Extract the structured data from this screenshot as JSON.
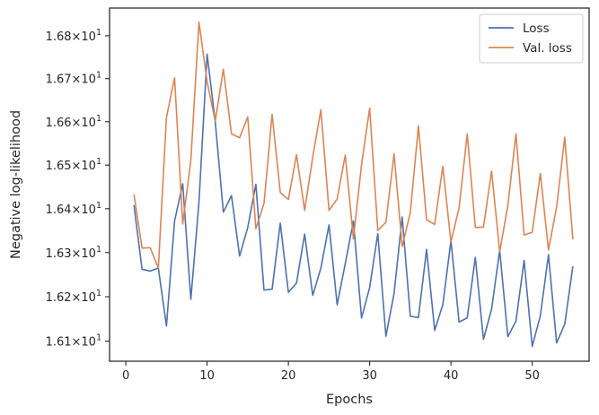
{
  "chart_data": {
    "type": "line",
    "title": "",
    "xlabel": "Epochs",
    "ylabel": "Negative log-likelihood",
    "xlim": [
      -2,
      57
    ],
    "ylim": [
      16.055,
      16.865
    ],
    "yscale": "log",
    "grid": false,
    "legend_position": "top-right",
    "x_ticks": [
      0,
      10,
      20,
      30,
      40,
      50
    ],
    "x_tick_labels": [
      "0",
      "10",
      "20",
      "30",
      "40",
      "50"
    ],
    "y_ticks": [
      16.1,
      16.2,
      16.3,
      16.4,
      16.5,
      16.6,
      16.7,
      16.8
    ],
    "y_tick_labels": [
      {
        "base": "1.61",
        "exp": "1"
      },
      {
        "base": "1.62",
        "exp": "1"
      },
      {
        "base": "1.63",
        "exp": "1"
      },
      {
        "base": "1.64",
        "exp": "1"
      },
      {
        "base": "1.65",
        "exp": "1"
      },
      {
        "base": "1.66",
        "exp": "1"
      },
      {
        "base": "1.67",
        "exp": "1"
      },
      {
        "base": "1.68",
        "exp": "1"
      }
    ],
    "x": [
      1,
      2,
      3,
      4,
      5,
      6,
      7,
      8,
      9,
      10,
      11,
      12,
      13,
      14,
      15,
      16,
      17,
      18,
      19,
      20,
      21,
      22,
      23,
      24,
      25,
      26,
      27,
      28,
      29,
      30,
      31,
      32,
      33,
      34,
      35,
      36,
      37,
      38,
      39,
      40,
      41,
      42,
      43,
      44,
      45,
      46,
      47,
      48,
      49,
      50,
      51,
      52,
      53,
      54,
      55
    ],
    "series": [
      {
        "name": "Loss",
        "color": "#4c72b0",
        "values": [
          16.408,
          16.262,
          16.258,
          16.265,
          16.134,
          16.372,
          16.457,
          16.194,
          16.415,
          16.757,
          16.6,
          16.392,
          16.43,
          16.292,
          16.357,
          16.456,
          16.215,
          16.217,
          16.367,
          16.21,
          16.231,
          16.342,
          16.203,
          16.265,
          16.363,
          16.182,
          16.275,
          16.372,
          16.152,
          16.221,
          16.343,
          16.111,
          16.207,
          16.381,
          16.156,
          16.153,
          16.307,
          16.124,
          16.182,
          16.327,
          16.143,
          16.152,
          16.289,
          16.104,
          16.172,
          16.305,
          16.11,
          16.145,
          16.282,
          16.088,
          16.157,
          16.295,
          16.096,
          16.138,
          16.269
        ]
      },
      {
        "name": "Val. loss",
        "color": "#dd8452",
        "values": [
          16.433,
          16.31,
          16.311,
          16.265,
          16.61,
          16.702,
          16.365,
          16.511,
          16.832,
          16.693,
          16.601,
          16.722,
          16.572,
          16.563,
          16.611,
          16.354,
          16.412,
          16.617,
          16.437,
          16.421,
          16.524,
          16.396,
          16.519,
          16.628,
          16.396,
          16.422,
          16.523,
          16.331,
          16.501,
          16.631,
          16.35,
          16.369,
          16.526,
          16.314,
          16.391,
          16.59,
          16.375,
          16.364,
          16.497,
          16.324,
          16.402,
          16.572,
          16.357,
          16.358,
          16.486,
          16.302,
          16.407,
          16.572,
          16.34,
          16.346,
          16.481,
          16.306,
          16.404,
          16.564,
          16.33
        ]
      }
    ]
  }
}
